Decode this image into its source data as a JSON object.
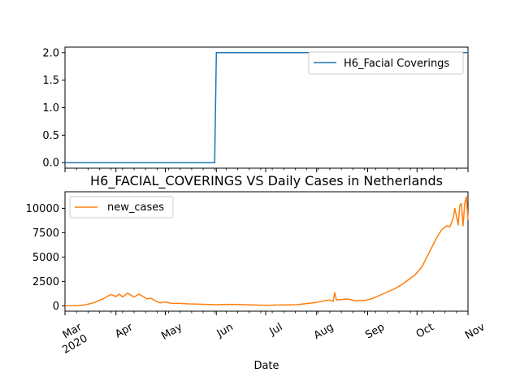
{
  "chart_data": [
    {
      "type": "line",
      "title": "",
      "xlabel": "",
      "ylabel": "",
      "ylim": [
        -0.1,
        2.1
      ],
      "y_ticks": [
        "0.0",
        "0.5",
        "1.0",
        "1.5",
        "2.0"
      ],
      "y_tick_values": [
        0,
        0.5,
        1.0,
        1.5,
        2.0
      ],
      "legend_position": "upper right",
      "series": [
        {
          "name": "H6_Facial Coverings",
          "color": "#1f77b4",
          "points": [
            [
              "2020-03-01",
              0
            ],
            [
              "2020-05-31",
              0
            ],
            [
              "2020-06-01",
              2
            ],
            [
              "2020-11-01",
              2
            ]
          ]
        }
      ]
    },
    {
      "type": "line",
      "title": "H6_FACIAL_COVERINGS VS Daily Cases in Netherlands",
      "xlabel": "Date",
      "ylabel": "",
      "ylim": [
        -550,
        11700
      ],
      "y_ticks": [
        "0",
        "2500",
        "5000",
        "7500",
        "10000"
      ],
      "y_tick_values": [
        0,
        2500,
        5000,
        7500,
        10000
      ],
      "legend_position": "upper left",
      "x_range": [
        "2020-03-01",
        "2020-11-01"
      ],
      "x_ticks": [
        {
          "date": "2020-03-01",
          "label": "Mar",
          "sublabel": "2020"
        },
        {
          "date": "2020-04-01",
          "label": "Apr"
        },
        {
          "date": "2020-05-01",
          "label": "May"
        },
        {
          "date": "2020-06-01",
          "label": "Jun"
        },
        {
          "date": "2020-07-01",
          "label": "Jul"
        },
        {
          "date": "2020-08-01",
          "label": "Aug"
        },
        {
          "date": "2020-09-01",
          "label": "Sep"
        },
        {
          "date": "2020-10-01",
          "label": "Oct"
        },
        {
          "date": "2020-11-01",
          "label": "Nov"
        }
      ],
      "series": [
        {
          "name": "new_cases",
          "color": "#ff7f0e",
          "points": [
            [
              "2020-03-01",
              0
            ],
            [
              "2020-03-05",
              10
            ],
            [
              "2020-03-09",
              30
            ],
            [
              "2020-03-13",
              80
            ],
            [
              "2020-03-15",
              170
            ],
            [
              "2020-03-18",
              300
            ],
            [
              "2020-03-21",
              500
            ],
            [
              "2020-03-24",
              700
            ],
            [
              "2020-03-27",
              1000
            ],
            [
              "2020-03-29",
              1150
            ],
            [
              "2020-04-01",
              950
            ],
            [
              "2020-04-03",
              1200
            ],
            [
              "2020-04-05",
              900
            ],
            [
              "2020-04-08",
              1300
            ],
            [
              "2020-04-10",
              1100
            ],
            [
              "2020-04-12",
              900
            ],
            [
              "2020-04-15",
              1200
            ],
            [
              "2020-04-17",
              1000
            ],
            [
              "2020-04-20",
              700
            ],
            [
              "2020-04-22",
              800
            ],
            [
              "2020-04-25",
              500
            ],
            [
              "2020-04-28",
              300
            ],
            [
              "2020-05-01",
              400
            ],
            [
              "2020-05-05",
              250
            ],
            [
              "2020-05-10",
              250
            ],
            [
              "2020-05-15",
              200
            ],
            [
              "2020-05-20",
              180
            ],
            [
              "2020-05-25",
              150
            ],
            [
              "2020-06-01",
              120
            ],
            [
              "2020-06-08",
              150
            ],
            [
              "2020-06-15",
              130
            ],
            [
              "2020-06-22",
              100
            ],
            [
              "2020-07-01",
              60
            ],
            [
              "2020-07-10",
              80
            ],
            [
              "2020-07-20",
              120
            ],
            [
              "2020-07-27",
              250
            ],
            [
              "2020-08-01",
              350
            ],
            [
              "2020-08-05",
              500
            ],
            [
              "2020-08-09",
              600
            ],
            [
              "2020-08-11",
              450
            ],
            [
              "2020-08-12",
              1350
            ],
            [
              "2020-08-13",
              600
            ],
            [
              "2020-08-16",
              650
            ],
            [
              "2020-08-20",
              700
            ],
            [
              "2020-08-25",
              500
            ],
            [
              "2020-08-30",
              550
            ],
            [
              "2020-09-03",
              700
            ],
            [
              "2020-09-06",
              900
            ],
            [
              "2020-09-10",
              1200
            ],
            [
              "2020-09-14",
              1500
            ],
            [
              "2020-09-18",
              1800
            ],
            [
              "2020-09-22",
              2200
            ],
            [
              "2020-09-26",
              2700
            ],
            [
              "2020-09-30",
              3200
            ],
            [
              "2020-10-04",
              4000
            ],
            [
              "2020-10-07",
              5000
            ],
            [
              "2020-10-10",
              6000
            ],
            [
              "2020-10-13",
              7000
            ],
            [
              "2020-10-16",
              7800
            ],
            [
              "2020-10-19",
              8200
            ],
            [
              "2020-10-21",
              8100
            ],
            [
              "2020-10-23",
              9000
            ],
            [
              "2020-10-24",
              10000
            ],
            [
              "2020-10-25",
              9200
            ],
            [
              "2020-10-26",
              8300
            ],
            [
              "2020-10-27",
              10300
            ],
            [
              "2020-10-28",
              10500
            ],
            [
              "2020-10-29",
              8200
            ],
            [
              "2020-10-30",
              10500
            ],
            [
              "2020-10-31",
              11200
            ],
            [
              "2020-11-01",
              8800
            ]
          ]
        }
      ]
    }
  ]
}
